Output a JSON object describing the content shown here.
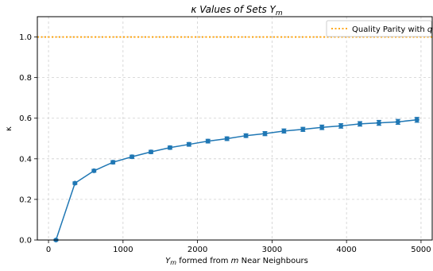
{
  "chart_data": {
    "type": "line",
    "title_parts": [
      "κ Values of Sets ",
      "Y",
      "m"
    ],
    "xlabel_parts": [
      "Y",
      "m",
      " formed from ",
      "m",
      " Near Neighbours"
    ],
    "ylabel": "κ",
    "xlim": [
      -150,
      5150
    ],
    "ylim": [
      0,
      1.1
    ],
    "xticks": [
      0,
      1000,
      2000,
      3000,
      4000,
      5000
    ],
    "yticks": [
      0.0,
      0.2,
      0.4,
      0.6,
      0.8,
      1.0
    ],
    "xtick_labels": [
      "0",
      "1000",
      "2000",
      "3000",
      "4000",
      "5000"
    ],
    "ytick_labels": [
      "0.0",
      "0.2",
      "0.4",
      "0.6",
      "0.8",
      "1.0"
    ],
    "grid": true,
    "legend_position": "top-right",
    "series": [
      {
        "color": "#1f77b4",
        "x": [
          100,
          355,
          610,
          865,
          1120,
          1375,
          1630,
          1885,
          2140,
          2395,
          2650,
          2905,
          3160,
          3415,
          3670,
          3925,
          4180,
          4435,
          4690,
          4945
        ],
        "y": [
          0.0,
          0.28,
          0.341,
          0.383,
          0.41,
          0.434,
          0.455,
          0.471,
          0.487,
          0.499,
          0.514,
          0.524,
          0.537,
          0.545,
          0.555,
          0.562,
          0.572,
          0.577,
          0.582,
          0.592
        ],
        "err": [
          0.004,
          0.006,
          0.007,
          0.008,
          0.008,
          0.008,
          0.008,
          0.009,
          0.009,
          0.009,
          0.009,
          0.01,
          0.01,
          0.01,
          0.011,
          0.011,
          0.011,
          0.012,
          0.012,
          0.012
        ]
      }
    ],
    "reference_line": {
      "label_parts": [
        "Quality Parity with ",
        "q"
      ],
      "y": 1.0,
      "color": "#ff9f00",
      "style": "dotted"
    }
  }
}
